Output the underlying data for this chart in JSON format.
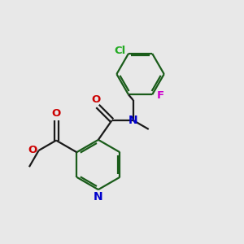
{
  "bg_color": "#e8e8e8",
  "bond_color": "#1a1a1a",
  "ring_color": "#1a5c1a",
  "atom_colors": {
    "N": "#0000cc",
    "O": "#cc0000",
    "Cl": "#22aa22",
    "F": "#cc00cc"
  },
  "lw": 1.6,
  "lw_ring": 1.6
}
